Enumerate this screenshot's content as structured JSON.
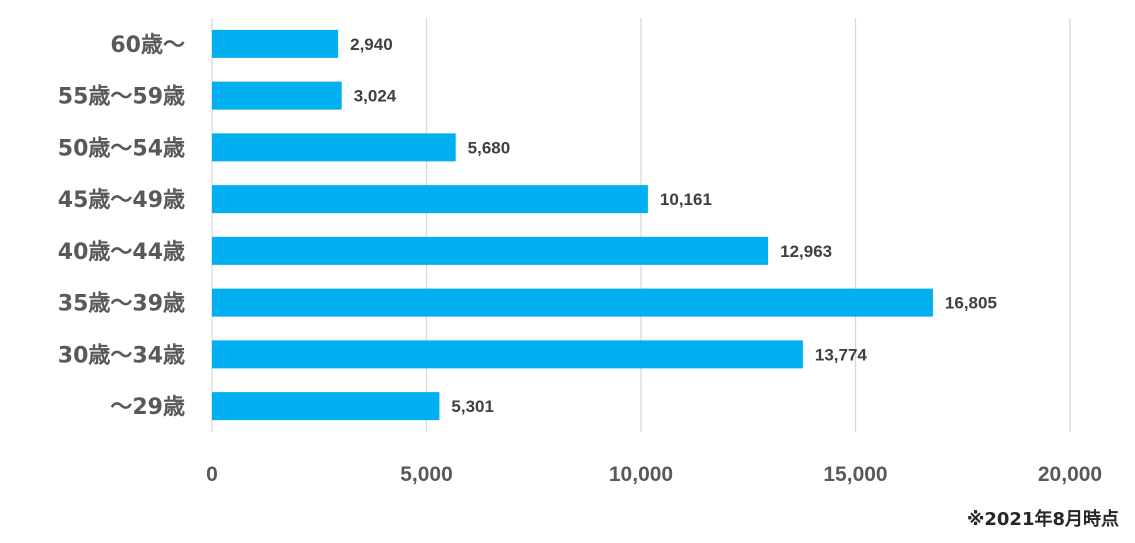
{
  "chart_data": {
    "type": "bar",
    "orientation": "horizontal",
    "categories": [
      "〜29歳",
      "30歳〜34歳",
      "35歳〜39歳",
      "40歳〜44歳",
      "45歳〜49歳",
      "50歳〜54歳",
      "55歳〜59歳",
      "60歳〜"
    ],
    "values": [
      5301,
      13774,
      16805,
      12963,
      10161,
      5680,
      3024,
      2940
    ],
    "value_labels": [
      "5,301",
      "13,774",
      "16,805",
      "12,963",
      "10,161",
      "5,680",
      "3,024",
      "2,940"
    ],
    "xlim": [
      0,
      20000
    ],
    "xticks": [
      0,
      5000,
      10000,
      15000,
      20000
    ],
    "xtick_labels": [
      "0",
      "5,000",
      "10,000",
      "15,000",
      "20,000"
    ],
    "grid": "vertical",
    "legend": "none",
    "bar_color": "#00B0F0"
  },
  "note": "※2021年8月時点"
}
